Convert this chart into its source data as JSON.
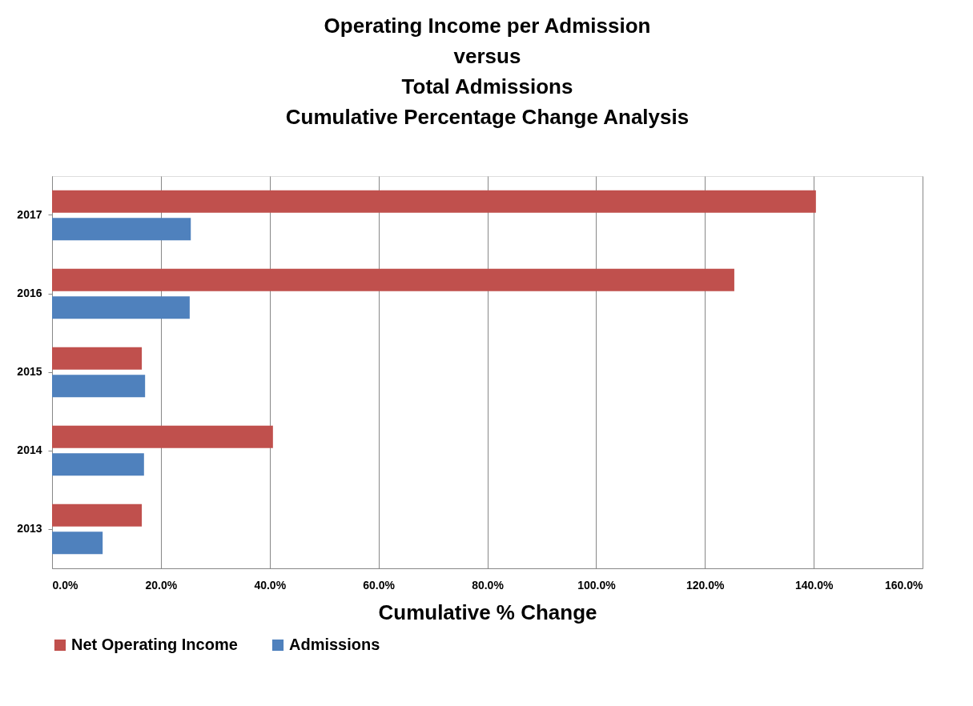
{
  "chart_data": {
    "type": "bar",
    "orientation": "horizontal",
    "title": "Operating Income per Admission\nversus\nTotal  Admissions\nCumulative Percentage Change Analysis",
    "xlabel": "Cumulative  % Change",
    "categories": [
      "2017",
      "2016",
      "2015",
      "2014",
      "2013"
    ],
    "series": [
      {
        "name": "Net Operating Income",
        "color": "#c0504d",
        "values": [
          140.4,
          125.4,
          16.5,
          40.6,
          16.5
        ]
      },
      {
        "name": "Admissions",
        "color": "#4f81bd",
        "values": [
          25.5,
          25.3,
          17.1,
          16.9,
          9.3
        ]
      }
    ],
    "xlim": [
      0,
      160
    ],
    "xticks": [
      {
        "value": 0,
        "label": "0.0%"
      },
      {
        "value": 20,
        "label": "20.0%"
      },
      {
        "value": 40,
        "label": "40.0%"
      },
      {
        "value": 60,
        "label": "60.0%"
      },
      {
        "value": 80,
        "label": "80.0%"
      },
      {
        "value": 100,
        "label": "100.0%"
      },
      {
        "value": 120,
        "label": "120.0%"
      },
      {
        "value": 140,
        "label": "140.0%"
      },
      {
        "value": 160,
        "label": "160.0%"
      }
    ],
    "grid": "x",
    "legend": "bottom"
  }
}
